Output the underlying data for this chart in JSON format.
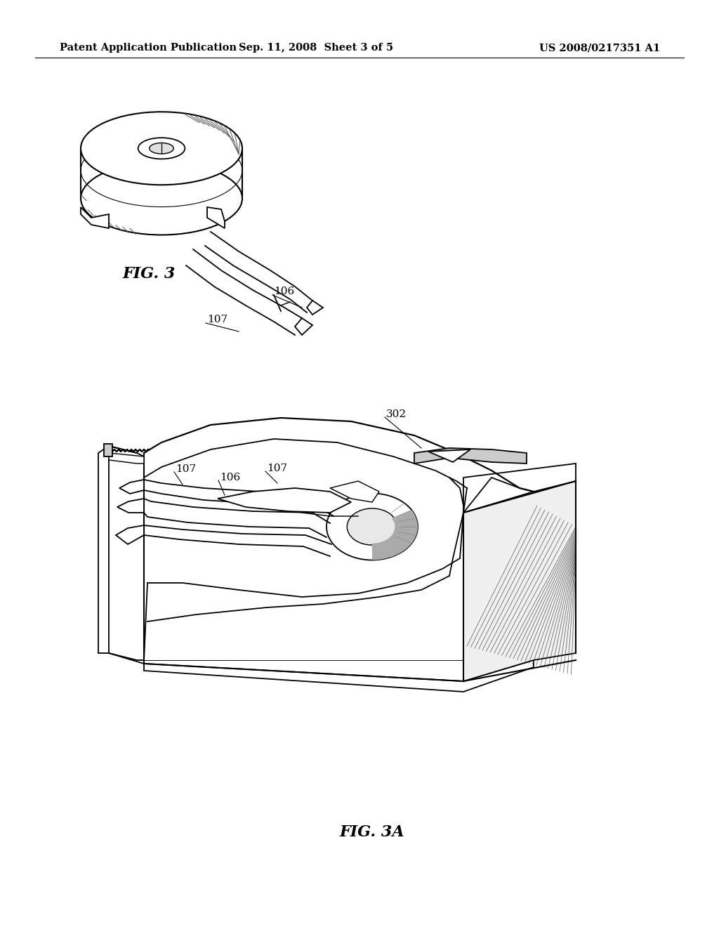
{
  "background_color": "#ffffff",
  "header_left": "Patent Application Publication",
  "header_center": "Sep. 11, 2008  Sheet 3 of 5",
  "header_right": "US 2008/0217351 A1",
  "header_fontsize": 10.5,
  "fig3_label": "FIG. 3",
  "fig3a_label": "FIG. 3A",
  "label_fontsize": 15,
  "line_color": "#000000",
  "line_width": 1.3
}
